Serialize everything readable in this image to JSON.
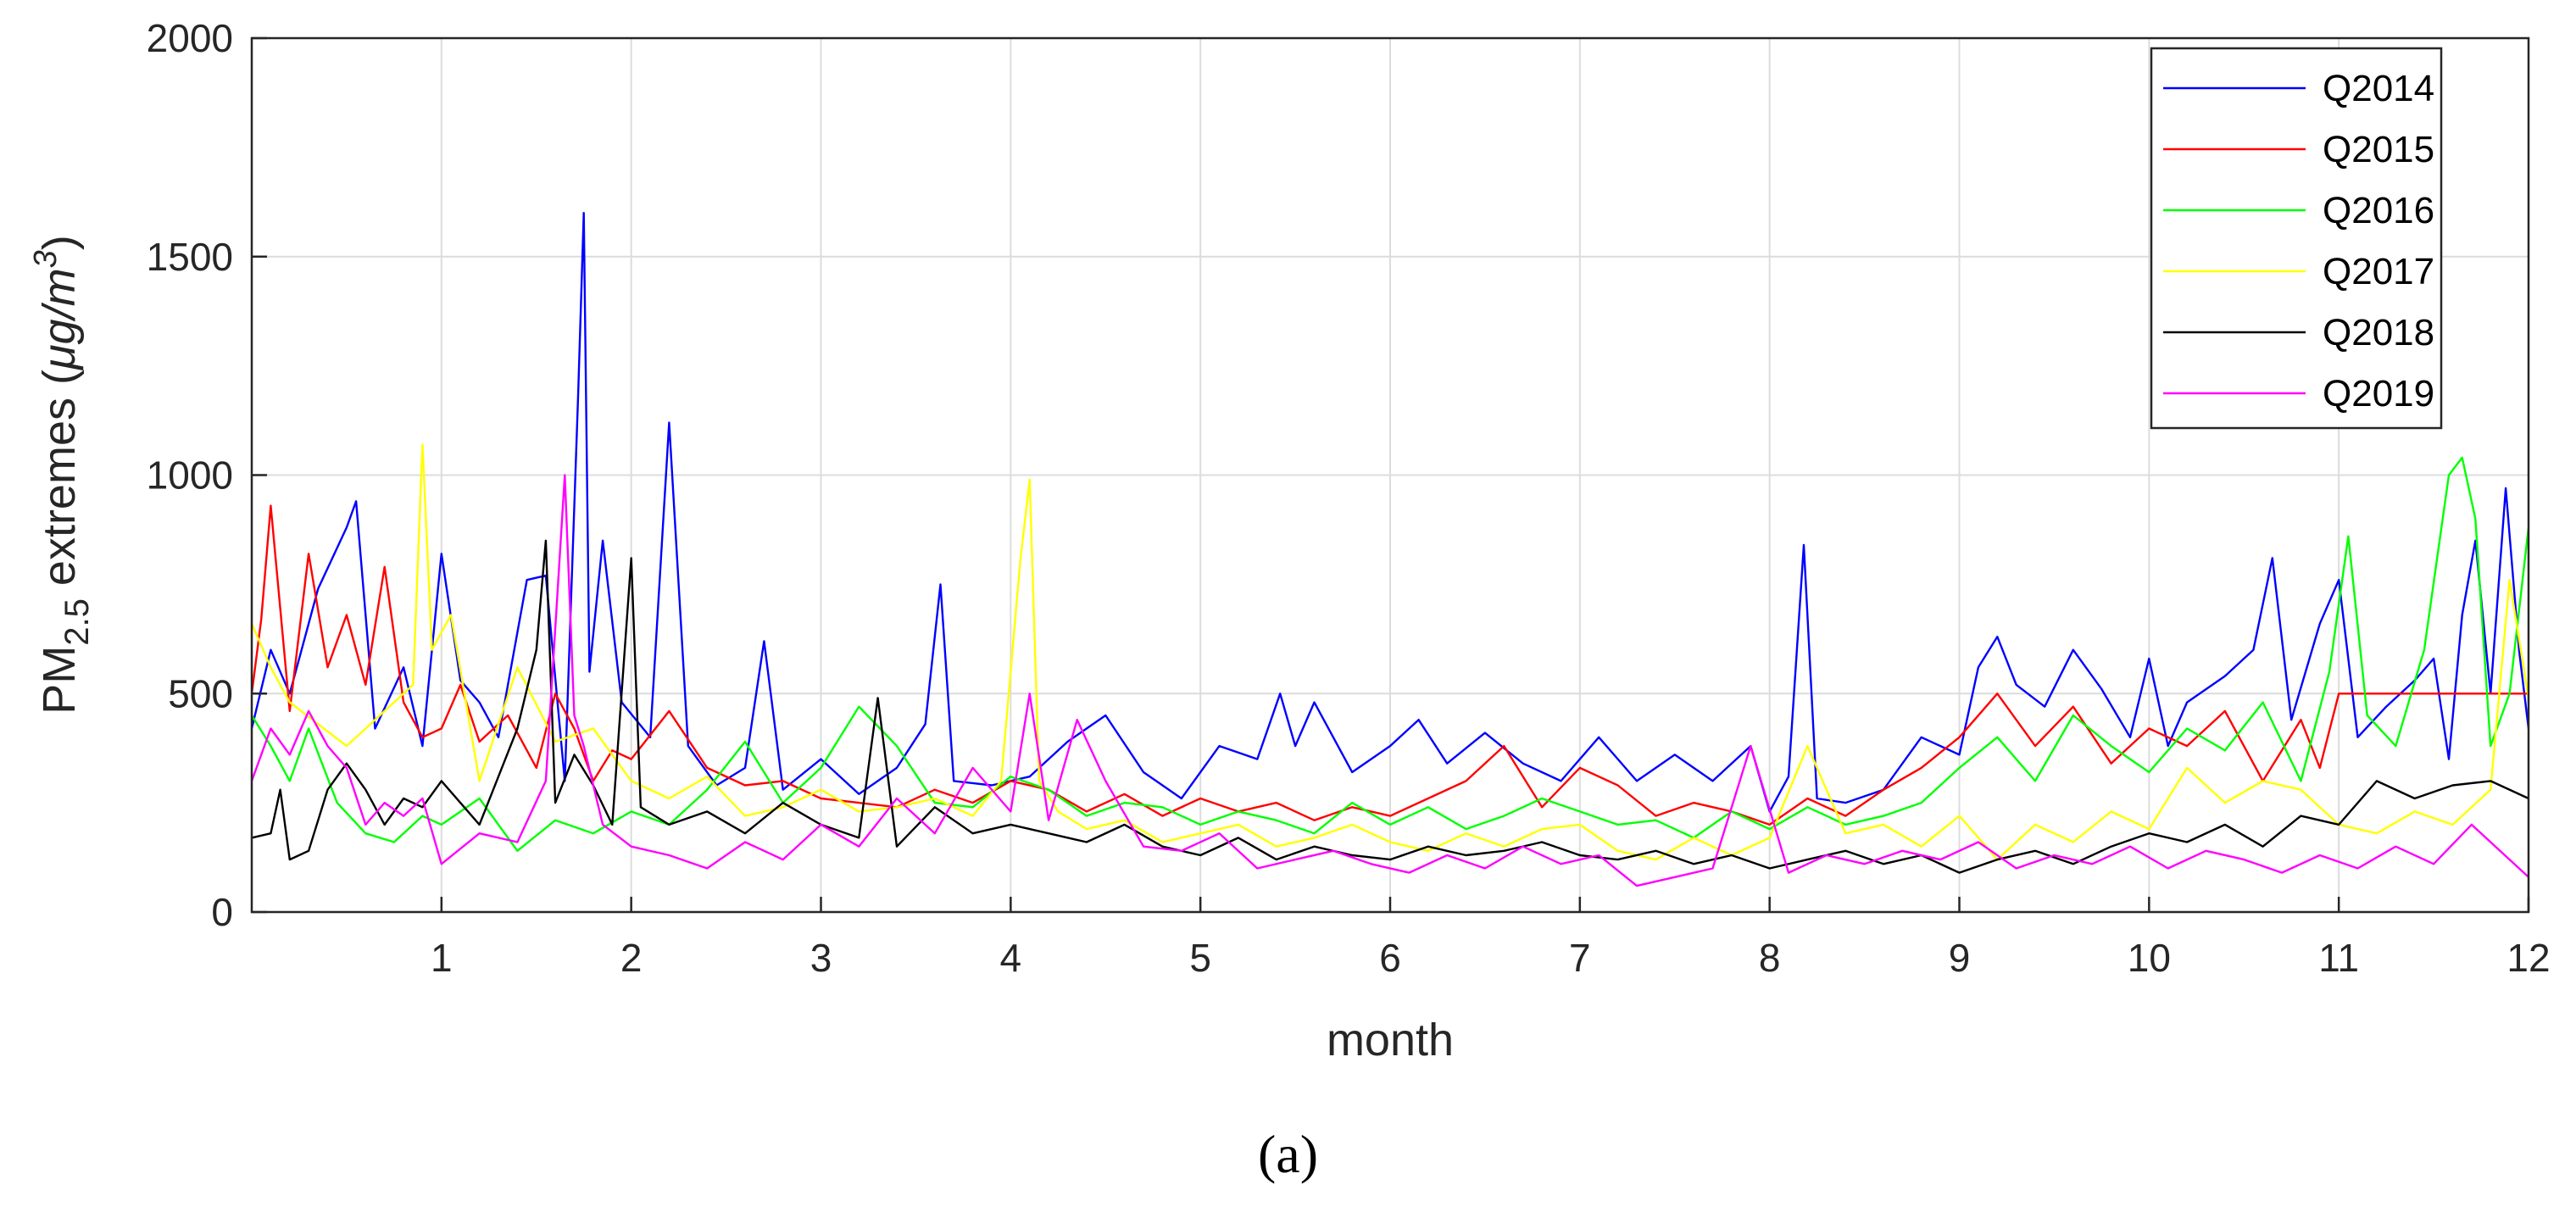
{
  "chart_data": {
    "type": "line",
    "xlabel": "month",
    "ylabel": {
      "prefix": "PM",
      "sub": "2.5",
      "middle": " extremes (",
      "unit_mu": "μ",
      "unit_g_over_m": "g/m",
      "unit_sup": "3",
      "suffix": ")"
    },
    "xlim": [
      0,
      12
    ],
    "ylim": [
      0,
      2000
    ],
    "xticks": [
      1,
      2,
      3,
      4,
      5,
      6,
      7,
      8,
      9,
      10,
      11,
      12
    ],
    "yticks": [
      0,
      500,
      1000,
      1500,
      2000
    ],
    "grid": true,
    "legend_position": "top-right",
    "series": [
      {
        "name": "Q2014",
        "color": "#0000ff",
        "x": [
          0,
          0.1,
          0.2,
          0.35,
          0.5,
          0.55,
          0.65,
          0.8,
          0.9,
          1.0,
          1.1,
          1.2,
          1.3,
          1.45,
          1.55,
          1.65,
          1.72,
          1.75,
          1.78,
          1.85,
          1.95,
          2.1,
          2.2,
          2.3,
          2.45,
          2.6,
          2.7,
          2.8,
          3.0,
          3.2,
          3.4,
          3.55,
          3.63,
          3.7,
          3.9,
          4.1,
          4.3,
          4.5,
          4.7,
          4.9,
          5.1,
          5.3,
          5.42,
          5.5,
          5.6,
          5.8,
          6.0,
          6.15,
          6.3,
          6.5,
          6.7,
          6.9,
          7.1,
          7.3,
          7.5,
          7.7,
          7.9,
          8.0,
          8.1,
          8.18,
          8.25,
          8.4,
          8.6,
          8.8,
          9.0,
          9.1,
          9.2,
          9.3,
          9.45,
          9.6,
          9.75,
          9.9,
          10.0,
          10.1,
          10.2,
          10.4,
          10.55,
          10.65,
          10.75,
          10.9,
          11.0,
          11.1,
          11.25,
          11.4,
          11.5,
          11.58,
          11.65,
          11.72,
          11.8,
          11.88,
          11.95,
          12.0
        ],
        "y": [
          420,
          600,
          500,
          740,
          880,
          940,
          420,
          560,
          380,
          820,
          530,
          480,
          400,
          760,
          770,
          300,
          1180,
          1600,
          550,
          850,
          480,
          400,
          1120,
          380,
          290,
          330,
          620,
          280,
          350,
          270,
          330,
          430,
          750,
          300,
          290,
          310,
          390,
          450,
          320,
          260,
          380,
          350,
          500,
          380,
          480,
          320,
          380,
          440,
          340,
          410,
          340,
          300,
          400,
          300,
          360,
          300,
          380,
          230,
          310,
          840,
          260,
          250,
          280,
          400,
          360,
          560,
          630,
          520,
          470,
          600,
          510,
          400,
          580,
          380,
          480,
          540,
          600,
          810,
          440,
          660,
          760,
          400,
          470,
          530,
          580,
          350,
          680,
          850,
          500,
          970,
          600,
          420
        ]
      },
      {
        "name": "Q2015",
        "color": "#ff0000",
        "x": [
          0,
          0.05,
          0.1,
          0.2,
          0.3,
          0.4,
          0.5,
          0.6,
          0.7,
          0.8,
          0.9,
          1.0,
          1.1,
          1.2,
          1.35,
          1.5,
          1.6,
          1.7,
          1.8,
          1.9,
          2.0,
          2.2,
          2.4,
          2.6,
          2.8,
          3.0,
          3.2,
          3.4,
          3.6,
          3.8,
          4.0,
          4.2,
          4.4,
          4.6,
          4.8,
          5.0,
          5.2,
          5.4,
          5.6,
          5.8,
          6.0,
          6.2,
          6.4,
          6.6,
          6.8,
          7.0,
          7.2,
          7.4,
          7.6,
          7.8,
          8.0,
          8.2,
          8.4,
          8.6,
          8.8,
          9.0,
          9.2,
          9.4,
          9.6,
          9.8,
          10.0,
          10.2,
          10.4,
          10.6,
          10.8,
          10.9,
          11.0,
          11.2,
          11.4,
          11.6,
          11.8,
          12.0
        ],
        "y": [
          500,
          670,
          930,
          460,
          820,
          560,
          680,
          520,
          790,
          480,
          400,
          420,
          520,
          390,
          450,
          330,
          500,
          420,
          300,
          370,
          350,
          460,
          330,
          290,
          300,
          260,
          250,
          240,
          280,
          250,
          300,
          280,
          230,
          270,
          220,
          260,
          230,
          250,
          210,
          240,
          220,
          260,
          300,
          380,
          240,
          330,
          290,
          220,
          250,
          230,
          200,
          260,
          220,
          280,
          330,
          400,
          500,
          380,
          470,
          340,
          420,
          380,
          460,
          300,
          440,
          330,
          500,
          500,
          500,
          500,
          500,
          500
        ]
      },
      {
        "name": "Q2016",
        "color": "#00ff00",
        "x": [
          0,
          0.1,
          0.2,
          0.3,
          0.45,
          0.6,
          0.75,
          0.9,
          1.0,
          1.2,
          1.4,
          1.6,
          1.8,
          2.0,
          2.2,
          2.4,
          2.6,
          2.8,
          3.0,
          3.2,
          3.4,
          3.6,
          3.8,
          4.0,
          4.2,
          4.4,
          4.6,
          4.8,
          5.0,
          5.2,
          5.4,
          5.6,
          5.8,
          6.0,
          6.2,
          6.4,
          6.6,
          6.8,
          7.0,
          7.2,
          7.4,
          7.6,
          7.8,
          8.0,
          8.2,
          8.4,
          8.6,
          8.8,
          9.0,
          9.2,
          9.4,
          9.6,
          9.8,
          10.0,
          10.2,
          10.4,
          10.6,
          10.8,
          10.95,
          11.05,
          11.15,
          11.3,
          11.45,
          11.58,
          11.65,
          11.72,
          11.8,
          11.9,
          12.0
        ],
        "y": [
          450,
          380,
          300,
          420,
          250,
          180,
          160,
          220,
          200,
          260,
          140,
          210,
          180,
          230,
          200,
          280,
          390,
          250,
          330,
          470,
          380,
          250,
          240,
          310,
          280,
          220,
          250,
          240,
          200,
          230,
          210,
          180,
          250,
          200,
          240,
          190,
          220,
          260,
          230,
          200,
          210,
          170,
          230,
          190,
          240,
          200,
          220,
          250,
          330,
          400,
          300,
          450,
          380,
          320,
          420,
          370,
          480,
          300,
          550,
          860,
          450,
          380,
          600,
          1000,
          1040,
          900,
          380,
          500,
          880
        ]
      },
      {
        "name": "Q2017",
        "color": "#ffff00",
        "x": [
          0,
          0.1,
          0.2,
          0.35,
          0.5,
          0.7,
          0.85,
          0.9,
          0.95,
          1.05,
          1.2,
          1.4,
          1.6,
          1.8,
          2.0,
          2.2,
          2.4,
          2.6,
          2.8,
          3.0,
          3.2,
          3.4,
          3.6,
          3.8,
          3.95,
          4.05,
          4.1,
          4.15,
          4.25,
          4.4,
          4.6,
          4.8,
          5.0,
          5.2,
          5.4,
          5.6,
          5.8,
          6.0,
          6.2,
          6.4,
          6.6,
          6.8,
          7.0,
          7.2,
          7.4,
          7.6,
          7.8,
          8.0,
          8.2,
          8.4,
          8.6,
          8.8,
          9.0,
          9.2,
          9.4,
          9.6,
          9.8,
          10.0,
          10.2,
          10.4,
          10.6,
          10.8,
          11.0,
          11.2,
          11.4,
          11.6,
          11.8,
          11.9,
          12.0
        ],
        "y": [
          660,
          560,
          480,
          430,
          380,
          460,
          520,
          1070,
          600,
          680,
          300,
          560,
          390,
          420,
          300,
          260,
          310,
          220,
          240,
          280,
          230,
          240,
          260,
          220,
          300,
          800,
          990,
          300,
          230,
          190,
          210,
          160,
          180,
          200,
          150,
          170,
          200,
          160,
          140,
          180,
          150,
          190,
          200,
          140,
          120,
          170,
          130,
          170,
          380,
          180,
          200,
          150,
          220,
          120,
          200,
          160,
          230,
          190,
          330,
          250,
          300,
          280,
          200,
          180,
          230,
          200,
          280,
          760,
          490
        ]
      },
      {
        "name": "Q2018",
        "color": "#000000",
        "x": [
          0,
          0.1,
          0.15,
          0.2,
          0.3,
          0.4,
          0.5,
          0.6,
          0.7,
          0.8,
          0.9,
          1.0,
          1.2,
          1.4,
          1.5,
          1.55,
          1.6,
          1.7,
          1.8,
          1.9,
          2.0,
          2.05,
          2.2,
          2.4,
          2.6,
          2.8,
          3.0,
          3.2,
          3.3,
          3.4,
          3.6,
          3.8,
          4.0,
          4.2,
          4.4,
          4.6,
          4.8,
          5.0,
          5.2,
          5.4,
          5.6,
          5.8,
          6.0,
          6.2,
          6.4,
          6.6,
          6.8,
          7.0,
          7.2,
          7.4,
          7.6,
          7.8,
          8.0,
          8.2,
          8.4,
          8.6,
          8.8,
          9.0,
          9.2,
          9.4,
          9.6,
          9.8,
          10.0,
          10.2,
          10.4,
          10.6,
          10.8,
          11.0,
          11.2,
          11.4,
          11.6,
          11.8,
          12.0
        ],
        "y": [
          170,
          180,
          280,
          120,
          140,
          280,
          340,
          280,
          200,
          260,
          240,
          300,
          200,
          420,
          600,
          850,
          250,
          360,
          290,
          200,
          810,
          240,
          200,
          230,
          180,
          250,
          200,
          170,
          490,
          150,
          240,
          180,
          200,
          180,
          160,
          200,
          150,
          130,
          170,
          120,
          150,
          130,
          120,
          150,
          130,
          140,
          160,
          130,
          120,
          140,
          110,
          130,
          100,
          120,
          140,
          110,
          130,
          90,
          120,
          140,
          110,
          150,
          180,
          160,
          200,
          150,
          220,
          200,
          300,
          260,
          290,
          300,
          260
        ]
      },
      {
        "name": "Q2019",
        "color": "#ff00ff",
        "x": [
          0,
          0.1,
          0.2,
          0.3,
          0.4,
          0.5,
          0.6,
          0.7,
          0.8,
          0.9,
          1.0,
          1.2,
          1.4,
          1.55,
          1.65,
          1.7,
          1.75,
          1.85,
          2.0,
          2.2,
          2.4,
          2.6,
          2.8,
          3.0,
          3.2,
          3.4,
          3.6,
          3.8,
          4.0,
          4.1,
          4.2,
          4.35,
          4.5,
          4.7,
          4.9,
          5.1,
          5.3,
          5.5,
          5.7,
          5.9,
          6.1,
          6.3,
          6.5,
          6.7,
          6.9,
          7.1,
          7.3,
          7.5,
          7.7,
          7.9,
          8.1,
          8.3,
          8.5,
          8.7,
          8.9,
          9.1,
          9.3,
          9.5,
          9.7,
          9.9,
          10.1,
          10.3,
          10.5,
          10.7,
          10.9,
          11.1,
          11.3,
          11.5,
          11.7,
          11.9,
          12.0
        ],
        "y": [
          300,
          420,
          360,
          460,
          380,
          330,
          200,
          250,
          220,
          260,
          110,
          180,
          160,
          300,
          1000,
          450,
          380,
          200,
          150,
          130,
          100,
          160,
          120,
          200,
          150,
          260,
          180,
          330,
          230,
          500,
          210,
          440,
          300,
          150,
          140,
          180,
          100,
          120,
          140,
          110,
          90,
          130,
          100,
          150,
          110,
          130,
          60,
          80,
          100,
          380,
          90,
          130,
          110,
          140,
          120,
          160,
          100,
          130,
          110,
          150,
          100,
          140,
          120,
          90,
          130,
          100,
          150,
          110,
          200,
          120,
          80
        ]
      }
    ]
  },
  "caption": "(a)"
}
